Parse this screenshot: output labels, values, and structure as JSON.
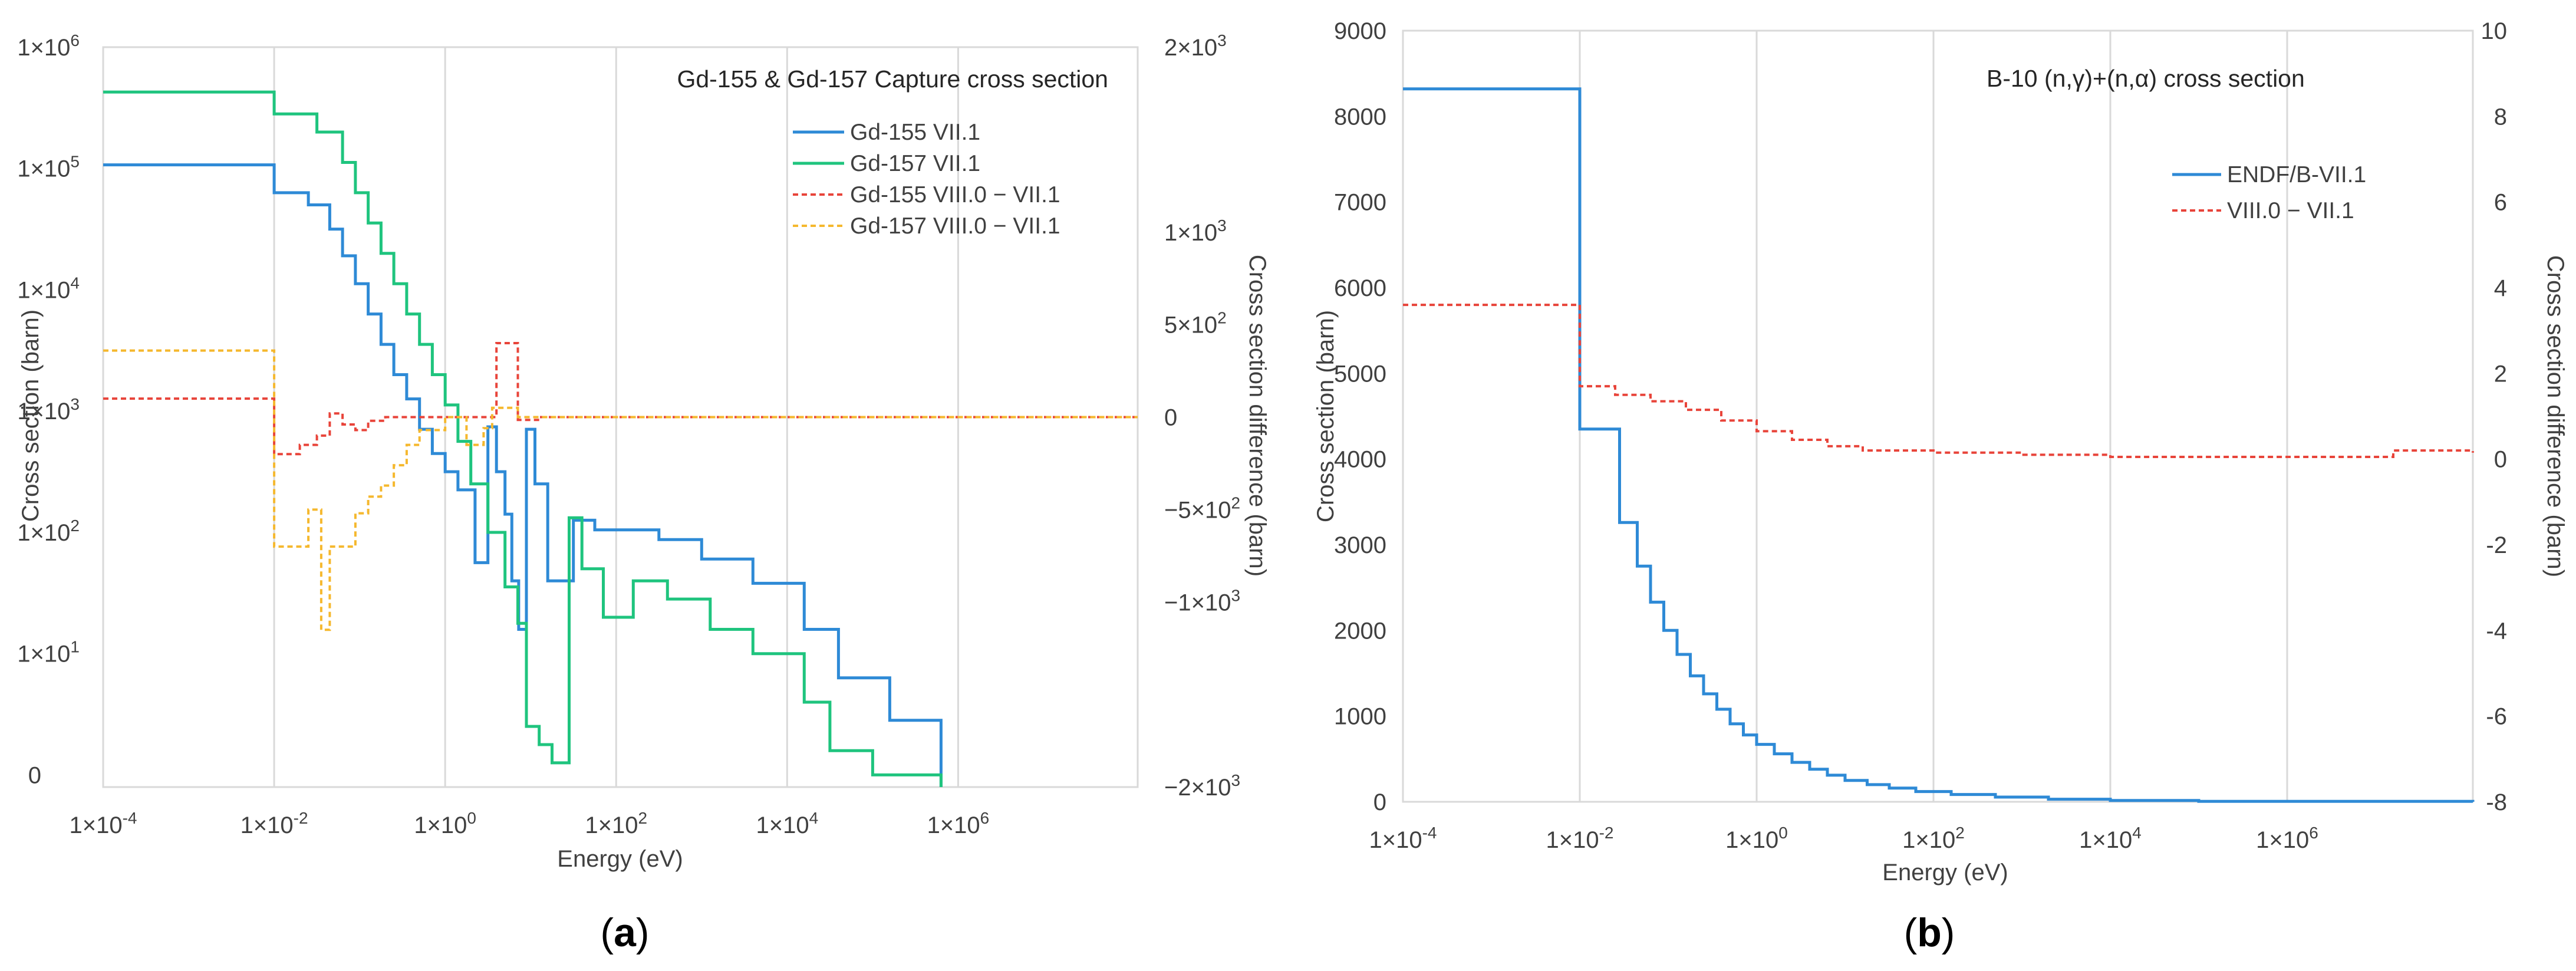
{
  "chart_data": [
    {
      "panel": "a",
      "panel_caption_open": "(",
      "panel_caption_letter": "a",
      "panel_caption_close": ")",
      "type": "line",
      "title": "Gd-155 & Gd-157 Capture cross section",
      "xlabel": "Energy (eV)",
      "ylabel": "Cross section (barn)",
      "y2label": "Cross section difference (barn)",
      "x_scale": "log",
      "xlim_log10": [
        -4,
        8.1
      ],
      "x_ticks_log10": [
        -4,
        -2,
        0,
        2,
        4,
        6
      ],
      "x_tick_labels": [
        {
          "base": "1×10",
          "exp": "-4"
        },
        {
          "base": "1×10",
          "exp": "-2"
        },
        {
          "base": "1×10",
          "exp": "0"
        },
        {
          "base": "1×10",
          "exp": "2"
        },
        {
          "base": "1×10",
          "exp": "4"
        },
        {
          "base": "1×10",
          "exp": "6"
        }
      ],
      "y_scale": "log",
      "ylim_log10": [
        -0.1,
        6
      ],
      "y_ticks_log10": [
        1,
        2,
        3,
        4,
        5,
        6
      ],
      "y_tick_labels": [
        {
          "base": "1×10",
          "exp": "1"
        },
        {
          "base": "1×10",
          "exp": "2"
        },
        {
          "base": "1×10",
          "exp": "3"
        },
        {
          "base": "1×10",
          "exp": "4"
        },
        {
          "base": "1×10",
          "exp": "5"
        },
        {
          "base": "1×10",
          "exp": "6"
        }
      ],
      "y_zero_label": "0",
      "y2_scale": "linear",
      "y2lim": [
        -2000,
        2000
      ],
      "y2_ticks": [
        {
          "value": 2000,
          "base": "2×10",
          "exp": "3"
        },
        {
          "value": 1500,
          "base": "",
          "exp": ""
        },
        {
          "value": 1000,
          "base": "1×10",
          "exp": "3"
        },
        {
          "value": 500,
          "base": "5×10",
          "exp": "2"
        },
        {
          "value": 0,
          "base": "0",
          "exp": ""
        },
        {
          "value": -500,
          "base": "−5×10",
          "exp": "2"
        },
        {
          "value": -1000,
          "base": "−1×10",
          "exp": "3"
        },
        {
          "value": -2000,
          "base": "−2×10",
          "exp": "3"
        }
      ],
      "legend_position": "top-right",
      "series": [
        {
          "name": "Gd-155 VII.1",
          "axis": "left",
          "color": "#2e8ad6",
          "dash": "solid",
          "x_log10": [
            -4,
            -2,
            -1.6,
            -1.35,
            -1.2,
            -1.05,
            -0.9,
            -0.75,
            -0.6,
            -0.45,
            -0.3,
            -0.15,
            0,
            0.15,
            0.35,
            0.5,
            0.6,
            0.7,
            0.78,
            0.86,
            0.95,
            1.05,
            1.2,
            1.5,
            1.75,
            2.5,
            3,
            3.6,
            4.2,
            4.6,
            5.2,
            5.8
          ],
          "y_log10": [
            5.03,
            4.8,
            4.7,
            4.5,
            4.28,
            4.05,
            3.8,
            3.55,
            3.3,
            3.1,
            2.85,
            2.65,
            2.5,
            2.35,
            1.75,
            2.87,
            2.5,
            2.15,
            1.6,
            1.2,
            2.85,
            2.4,
            1.6,
            2.1,
            2.02,
            1.94,
            1.78,
            1.58,
            1.2,
            0.8,
            0.45,
            -0.1
          ]
        },
        {
          "name": "Gd-157 VII.1",
          "axis": "left",
          "color": "#1fc47e",
          "dash": "solid",
          "x_log10": [
            -4,
            -2,
            -1.5,
            -1.2,
            -1.05,
            -0.9,
            -0.75,
            -0.6,
            -0.45,
            -0.3,
            -0.15,
            0,
            0.15,
            0.3,
            0.5,
            0.7,
            0.85,
            0.95,
            1.1,
            1.25,
            1.45,
            1.6,
            1.85,
            2.2,
            2.6,
            3.1,
            3.6,
            4.2,
            4.5,
            5,
            5.8
          ],
          "y_log10": [
            5.63,
            5.45,
            5.3,
            5.05,
            4.8,
            4.55,
            4.3,
            4.05,
            3.8,
            3.55,
            3.3,
            3.05,
            2.75,
            2.4,
            2.0,
            1.55,
            1.25,
            0.4,
            0.25,
            0.1,
            2.12,
            1.7,
            1.3,
            1.6,
            1.45,
            1.2,
            1.0,
            0.6,
            0.2,
            0.0,
            -0.1
          ]
        },
        {
          "name": "Gd-155 VIII.0 − VII.1",
          "axis": "right",
          "color": "#e8443a",
          "dash": "dashed",
          "x_log10": [
            -4,
            -2,
            -1.7,
            -1.5,
            -1.35,
            -1.2,
            -1.05,
            -0.9,
            -0.7,
            0,
            0.4,
            0.6,
            0.85,
            1.1,
            1.5,
            8.1
          ],
          "y": [
            100,
            -200,
            -150,
            -100,
            20,
            -40,
            -70,
            -20,
            0,
            0,
            0,
            400,
            -15,
            0,
            0,
            0
          ]
        },
        {
          "name": "Gd-157 VIII.0 − VII.1",
          "axis": "right",
          "color": "#f5b82e",
          "dash": "dashed",
          "x_log10": [
            -4,
            -2,
            -1.8,
            -1.6,
            -1.45,
            -1.35,
            -1.2,
            -1.05,
            -0.9,
            -0.75,
            -0.6,
            -0.45,
            -0.3,
            0,
            0.25,
            0.45,
            0.55,
            0.85,
            1.2,
            8.1
          ],
          "y": [
            360,
            -700,
            -700,
            -500,
            -1150,
            -700,
            -700,
            -520,
            -430,
            -370,
            -260,
            -150,
            -70,
            0,
            -150,
            -60,
            50,
            0,
            0,
            0
          ]
        }
      ]
    },
    {
      "panel": "b",
      "panel_caption_open": "(",
      "panel_caption_letter": "b",
      "panel_caption_close": ")",
      "type": "line",
      "title": "B-10 (n,γ)+(n,α) cross section",
      "xlabel": "Energy (eV)",
      "ylabel": "Cross section (barn)",
      "y2label": "Cross section difference (barn)",
      "x_scale": "log",
      "xlim_log10": [
        -4,
        8.1
      ],
      "x_ticks_log10": [
        -4,
        -2,
        0,
        2,
        4,
        6
      ],
      "x_tick_labels": [
        {
          "base": "1×10",
          "exp": "-4"
        },
        {
          "base": "1×10",
          "exp": "-2"
        },
        {
          "base": "1×10",
          "exp": "0"
        },
        {
          "base": "1×10",
          "exp": "2"
        },
        {
          "base": "1×10",
          "exp": "4"
        },
        {
          "base": "1×10",
          "exp": "6"
        }
      ],
      "y_scale": "linear",
      "ylim": [
        0,
        9000
      ],
      "y_ticks": [
        0,
        1000,
        2000,
        3000,
        4000,
        5000,
        6000,
        7000,
        8000,
        9000
      ],
      "y2lim": [
        -8,
        10
      ],
      "y2_ticks": [
        -8,
        -6,
        -4,
        -2,
        0,
        2,
        4,
        6,
        8,
        10
      ],
      "legend_position": "right",
      "series": [
        {
          "name": "ENDF/B-VII.1",
          "axis": "left",
          "color": "#2e8ad6",
          "dash": "solid",
          "x_log10": [
            -4,
            -2,
            -1.55,
            -1.35,
            -1.2,
            -1.05,
            -0.9,
            -0.75,
            -0.6,
            -0.45,
            -0.3,
            -0.15,
            0,
            0.2,
            0.4,
            0.6,
            0.8,
            1.0,
            1.25,
            1.5,
            1.8,
            2.2,
            2.7,
            3.3,
            4.0,
            5.0,
            8.1
          ],
          "y": [
            8320,
            4350,
            3260,
            2750,
            2330,
            2000,
            1720,
            1470,
            1260,
            1080,
            910,
            780,
            670,
            560,
            460,
            380,
            310,
            250,
            200,
            160,
            120,
            85,
            55,
            30,
            15,
            5,
            0
          ]
        },
        {
          "name": "VIII.0 − VII.1",
          "axis": "right",
          "color": "#e8443a",
          "dash": "dashed",
          "x_log10": [
            -4,
            -2,
            -1.6,
            -1.2,
            -0.8,
            -0.4,
            0,
            0.4,
            0.8,
            1.2,
            1.6,
            2.0,
            3.0,
            4.0,
            5.0,
            6.0,
            7.0,
            7.2,
            8.1
          ],
          "y": [
            3.6,
            1.7,
            1.5,
            1.35,
            1.15,
            0.9,
            0.65,
            0.45,
            0.3,
            0.2,
            0.2,
            0.15,
            0.1,
            0.05,
            0.05,
            0.05,
            0.05,
            0.2,
            0.15
          ]
        }
      ]
    }
  ]
}
